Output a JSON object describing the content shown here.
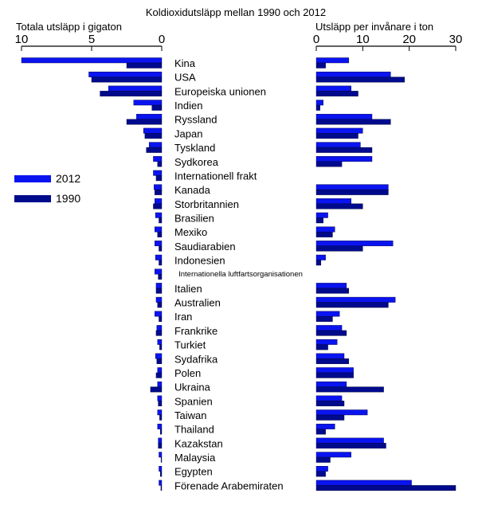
{
  "chart_data": {
    "type": "bar",
    "title": "Koldioxidutsläpp mellan 1990 och 2012",
    "left_panel": {
      "axis_title": "Totala utsläpp i gigaton",
      "ticks": [
        10,
        5,
        0
      ],
      "xlim": [
        10,
        0
      ]
    },
    "right_panel": {
      "axis_title": "Utsläpp per invånare i ton",
      "ticks": [
        0,
        10,
        20,
        30
      ],
      "xlim": [
        0,
        30
      ]
    },
    "colors": {
      "2012": "#0a14f0",
      "1990": "#000a8c"
    },
    "legend": {
      "items": [
        "2012",
        "1990"
      ]
    },
    "categories": [
      "Kina",
      "USA",
      "Europeiska unionen",
      "Indien",
      "Ryssland",
      "Japan",
      "Tyskland",
      "Sydkorea",
      "Internationell frakt",
      "Kanada",
      "Storbritannien",
      "Brasilien",
      "Mexiko",
      "Saudiarabien",
      "Indonesien",
      "Internationella luftfartsorganisationen",
      "Italien",
      "Australien",
      "Iran",
      "Frankrike",
      "Turkiet",
      "Sydafrika",
      "Polen",
      "Ukraina",
      "Spanien",
      "Taiwan",
      "Thailand",
      "Kazakstan",
      "Malaysia",
      "Egypten",
      "Förenade Arabemiraten"
    ],
    "series": [
      {
        "name": "2012",
        "total": [
          10.0,
          5.2,
          3.8,
          2.0,
          1.8,
          1.3,
          0.9,
          0.6,
          0.6,
          0.55,
          0.5,
          0.45,
          0.5,
          0.5,
          0.45,
          0.5,
          0.4,
          0.4,
          0.5,
          0.35,
          0.3,
          0.45,
          0.3,
          0.3,
          0.3,
          0.3,
          0.3,
          0.25,
          0.2,
          0.2,
          0.2
        ],
        "per_capita": [
          7.0,
          16.0,
          7.5,
          1.5,
          12.0,
          10.0,
          9.5,
          12.0,
          0,
          15.5,
          7.5,
          2.5,
          4.0,
          16.5,
          2.0,
          0,
          6.5,
          17.0,
          5.0,
          5.5,
          4.5,
          6.0,
          8.0,
          6.5,
          5.5,
          11.0,
          4.0,
          14.5,
          7.5,
          2.5,
          20.5
        ]
      },
      {
        "name": "1990",
        "total": [
          2.5,
          5.0,
          4.4,
          0.7,
          2.5,
          1.2,
          1.1,
          0.3,
          0.4,
          0.5,
          0.6,
          0.2,
          0.3,
          0.2,
          0.2,
          0.25,
          0.4,
          0.3,
          0.2,
          0.4,
          0.15,
          0.35,
          0.4,
          0.8,
          0.25,
          0.15,
          0.1,
          0.25,
          0.05,
          0.1,
          0.06
        ],
        "per_capita": [
          2.0,
          19.0,
          9.0,
          0.8,
          16.0,
          9.0,
          12.0,
          5.5,
          0,
          15.5,
          10.0,
          1.5,
          3.5,
          10.0,
          1.0,
          0,
          7.0,
          15.5,
          3.5,
          6.5,
          2.5,
          7.0,
          8.0,
          14.5,
          6.0,
          6.0,
          2.0,
          15.0,
          3.0,
          2.0,
          30.0
        ]
      }
    ]
  }
}
